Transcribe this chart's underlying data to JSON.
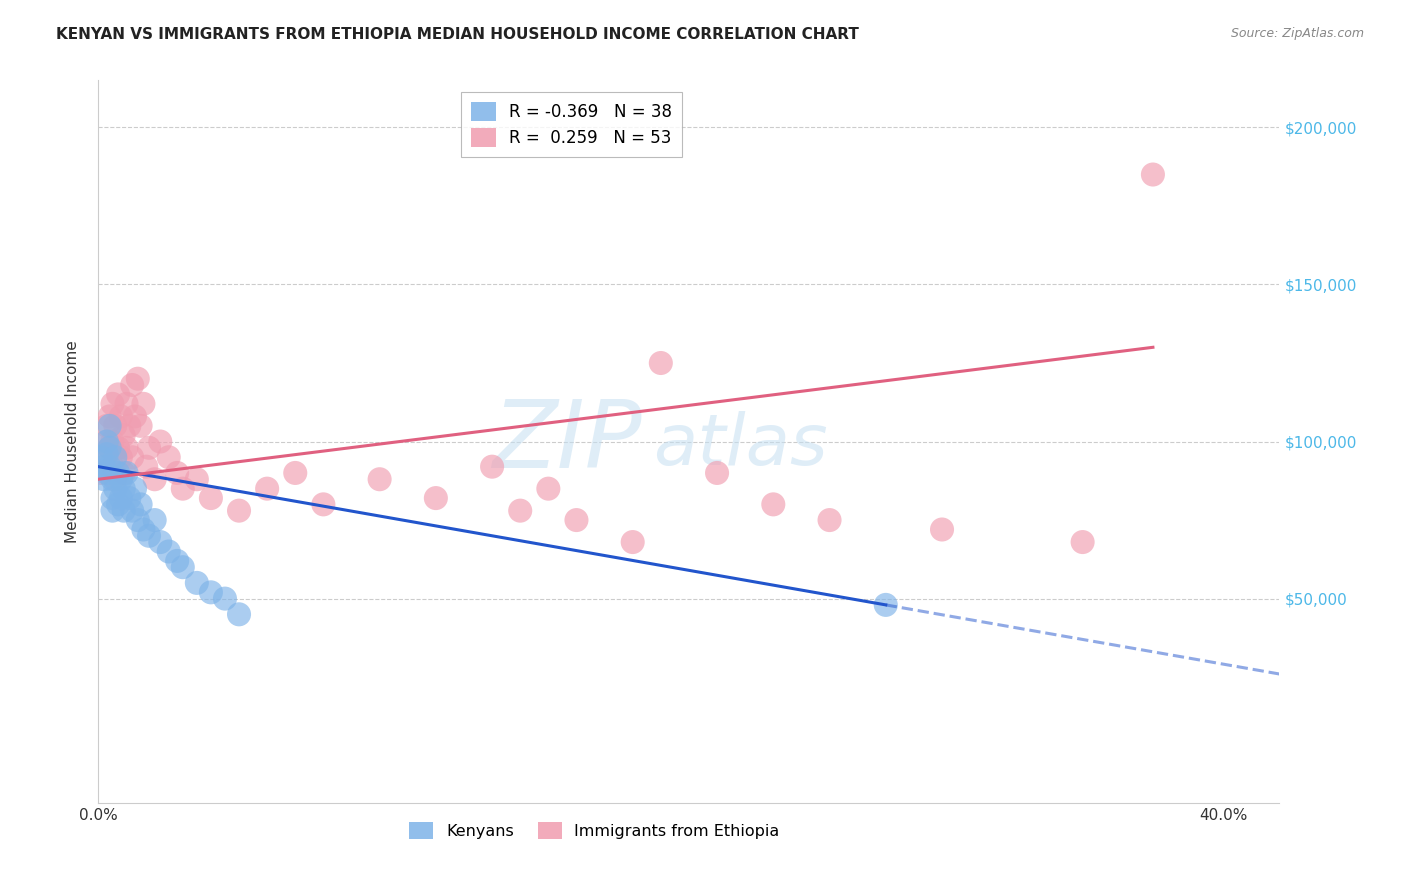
{
  "title": "KENYAN VS IMMIGRANTS FROM ETHIOPIA MEDIAN HOUSEHOLD INCOME CORRELATION CHART",
  "source": "Source: ZipAtlas.com",
  "ylabel": "Median Household Income",
  "watermark_zip": "ZIP",
  "watermark_atlas": "atlas",
  "background_color": "#ffffff",
  "grid_color": "#cccccc",
  "xlim": [
    0.0,
    0.42
  ],
  "ylim": [
    -15000,
    215000
  ],
  "kenyan_color": "#7eb3e8",
  "ethiopia_color": "#f09db0",
  "kenyan_line_color": "#2255cc",
  "ethiopia_line_color": "#e06080",
  "ytick_color": "#4db8e8",
  "kenyan_x": [
    0.001,
    0.002,
    0.002,
    0.003,
    0.003,
    0.003,
    0.004,
    0.004,
    0.004,
    0.005,
    0.005,
    0.005,
    0.006,
    0.006,
    0.007,
    0.007,
    0.008,
    0.008,
    0.009,
    0.009,
    0.01,
    0.011,
    0.012,
    0.013,
    0.014,
    0.015,
    0.016,
    0.018,
    0.02,
    0.022,
    0.025,
    0.028,
    0.03,
    0.035,
    0.04,
    0.045,
    0.05,
    0.28
  ],
  "kenyan_y": [
    95000,
    92000,
    88000,
    100000,
    96000,
    90000,
    105000,
    98000,
    92000,
    88000,
    82000,
    78000,
    95000,
    85000,
    90000,
    80000,
    88000,
    82000,
    78000,
    85000,
    90000,
    82000,
    78000,
    85000,
    75000,
    80000,
    72000,
    70000,
    75000,
    68000,
    65000,
    62000,
    60000,
    55000,
    52000,
    50000,
    45000,
    48000
  ],
  "ethiopia_x": [
    0.001,
    0.002,
    0.003,
    0.003,
    0.004,
    0.004,
    0.005,
    0.005,
    0.005,
    0.006,
    0.006,
    0.007,
    0.007,
    0.008,
    0.008,
    0.009,
    0.009,
    0.01,
    0.01,
    0.011,
    0.012,
    0.012,
    0.013,
    0.014,
    0.015,
    0.016,
    0.017,
    0.018,
    0.02,
    0.022,
    0.025,
    0.028,
    0.03,
    0.035,
    0.04,
    0.05,
    0.06,
    0.07,
    0.08,
    0.1,
    0.12,
    0.14,
    0.15,
    0.16,
    0.17,
    0.19,
    0.2,
    0.22,
    0.24,
    0.26,
    0.3,
    0.35,
    0.375
  ],
  "ethiopia_y": [
    90000,
    95000,
    105000,
    100000,
    98000,
    108000,
    92000,
    100000,
    112000,
    88000,
    105000,
    115000,
    98000,
    108000,
    95000,
    102000,
    90000,
    112000,
    98000,
    105000,
    118000,
    95000,
    108000,
    120000,
    105000,
    112000,
    92000,
    98000,
    88000,
    100000,
    95000,
    90000,
    85000,
    88000,
    82000,
    78000,
    85000,
    90000,
    80000,
    88000,
    82000,
    92000,
    78000,
    85000,
    75000,
    68000,
    125000,
    90000,
    80000,
    75000,
    72000,
    68000,
    185000
  ],
  "legend_top": [
    {
      "label": "R = -0.369   N = 38",
      "color": "#7eb3e8"
    },
    {
      "label": "R =  0.259   N = 53",
      "color": "#f09db0"
    }
  ],
  "legend_bottom": [
    "Kenyans",
    "Immigrants from Ethiopia"
  ]
}
